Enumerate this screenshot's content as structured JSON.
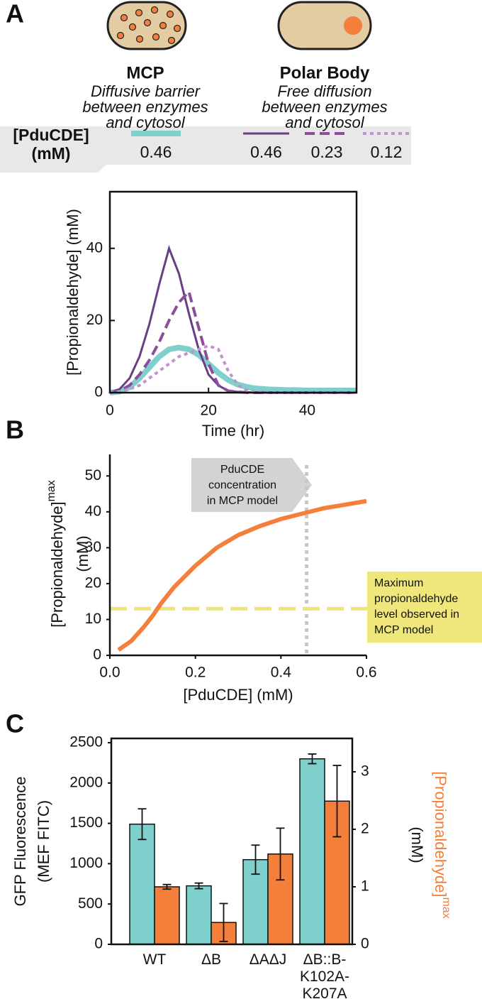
{
  "panels": [
    "A",
    "B",
    "C"
  ],
  "schematic": {
    "groups": [
      {
        "title": "MCP",
        "description": [
          "Diffusive barrier",
          "between enzymes",
          "and cytosol"
        ]
      },
      {
        "title": "Polar Body",
        "description": [
          "Free diffusion",
          "between enzymes",
          "and cytosol"
        ]
      }
    ]
  },
  "chart_data": [
    {
      "type": "line",
      "xlabel": "Time (hr)",
      "ylabel": "[Propionaldehyde] (mM)",
      "legend_title": [
        "[PduCDE]",
        "(mM)"
      ],
      "x": [
        0,
        2,
        4,
        6,
        8,
        10,
        12,
        14,
        16,
        18,
        20,
        22,
        24,
        26,
        28,
        30,
        32,
        34,
        36,
        38,
        40,
        42,
        44,
        46,
        48,
        50
      ],
      "series": [
        {
          "name": "0.46",
          "color": "#7fd0cc",
          "style": "solid",
          "linewidth": 8,
          "values": [
            0,
            0.3,
            1.5,
            4,
            7,
            10,
            12,
            12.5,
            12,
            10.5,
            8,
            5.5,
            3.5,
            2.2,
            1.5,
            1.1,
            0.9,
            0.8,
            0.7,
            0.7,
            0.6,
            0.6,
            0.6,
            0.6,
            0.6,
            0.6
          ]
        },
        {
          "name": "0.46",
          "color": "#6a3d86",
          "style": "solid",
          "linewidth": 3,
          "values": [
            0,
            1,
            4,
            10,
            19,
            30,
            40,
            33,
            22,
            12,
            5,
            2,
            0.5,
            0.2,
            0.1,
            0,
            0,
            0,
            0,
            0,
            0,
            0,
            0,
            0,
            0,
            0
          ]
        },
        {
          "name": "0.23",
          "color": "#8d4c9c",
          "style": "dashed",
          "linewidth": 4,
          "values": [
            0,
            0.5,
            2,
            5,
            9,
            14,
            20,
            25,
            28,
            18,
            8,
            2,
            0.5,
            0.2,
            0,
            0,
            0,
            0,
            0,
            0,
            0,
            0,
            0,
            0,
            0,
            0
          ]
        },
        {
          "name": "0.12",
          "color": "#c193cf",
          "style": "dotted",
          "linewidth": 4,
          "values": [
            0,
            0.3,
            1,
            2,
            4,
            6,
            8,
            10,
            11,
            12,
            13,
            12,
            6,
            2,
            0.5,
            0.2,
            0,
            0,
            0,
            0,
            0,
            0,
            0,
            0,
            0,
            0
          ]
        }
      ],
      "xlim": [
        0,
        50
      ],
      "xticks": [
        0,
        20,
        40
      ],
      "ylim": [
        0,
        55.7
      ],
      "yticks": [
        0,
        20,
        40
      ]
    },
    {
      "type": "line",
      "xlabel": "[PduCDE] (mM)",
      "ylabel": {
        "text": "[Propionaldehyde]",
        "superscript": "max",
        "unit": "(mM)"
      },
      "x": [
        0.02,
        0.05,
        0.08,
        0.1,
        0.12,
        0.15,
        0.2,
        0.25,
        0.3,
        0.35,
        0.4,
        0.45,
        0.5,
        0.55,
        0.6
      ],
      "values": [
        1.5,
        4,
        8,
        11,
        14.5,
        19,
        25,
        30,
        33.5,
        36,
        38,
        39.5,
        41,
        42,
        43
      ],
      "color": "#f47f3b",
      "hlines": [
        {
          "value": 13,
          "color": "#efe47a",
          "style": "longdash"
        }
      ],
      "vlines": [
        {
          "value": 0.46,
          "color": "#c8c8c8",
          "style": "dotted"
        }
      ],
      "annotations": [
        {
          "lines": [
            "PduCDE",
            "concentration",
            "in MCP model"
          ],
          "color": "#d3d3d3"
        },
        {
          "lines": [
            "Maximum",
            "propionaldehyde",
            "level observed in",
            "MCP model"
          ],
          "color": "#efe77c"
        }
      ],
      "xlim": [
        0,
        0.6
      ],
      "xticks": [
        {
          "value": 0,
          "label": "0.0"
        },
        0.2,
        0.4,
        0.6
      ],
      "ylim": [
        0,
        56
      ],
      "yticks": [
        0,
        10,
        20,
        30,
        40,
        50
      ]
    },
    {
      "type": "bar",
      "categories": [
        [
          "WT"
        ],
        [
          "ΔB"
        ],
        [
          "ΔAΔJ"
        ],
        [
          "ΔB::B-",
          "K102A-",
          "K207A"
        ]
      ],
      "ylabel": [
        "GFP Fluorescence",
        "(MEF FITC)"
      ],
      "ylabel_color": "#6cc3be",
      "y2label": {
        "text": "[Propionaldehyde]",
        "superscript": "max",
        "unit": "(mM)"
      },
      "y2label_color": "#f47f3b",
      "series": [
        {
          "color": "#7fd0cc",
          "axis": "y",
          "values": [
            1490,
            725,
            1050,
            2300
          ],
          "errors": [
            190,
            35,
            180,
            60
          ]
        },
        {
          "color": "#f47f3b",
          "axis": "y2",
          "values": [
            1.0,
            0.38,
            1.57,
            2.49
          ],
          "errors": [
            0.04,
            0.33,
            0.45,
            0.62
          ]
        }
      ],
      "ylim": [
        0,
        2553
      ],
      "yticks": [
        0,
        500,
        1000,
        1500,
        2000,
        2500
      ],
      "y2lim": [
        0,
        3.58
      ],
      "y2ticks": [
        0,
        1,
        2,
        3
      ]
    }
  ]
}
